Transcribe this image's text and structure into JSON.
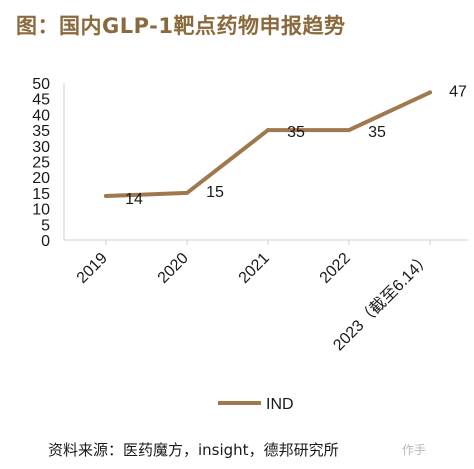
{
  "title": "图：国内GLP-1靶点药物申报趋势",
  "source": "资料来源：医药魔方，insight，德邦研究所",
  "watermark": "作手",
  "colors": {
    "title": "#8a6a3c",
    "series": "#a0784e",
    "axis": "#d0d0d0",
    "text": "#1a1a1a"
  },
  "chart_data": {
    "type": "line",
    "title": "",
    "xlabel": "",
    "ylabel": "",
    "categories": [
      "2019",
      "2020",
      "2021",
      "2022",
      "2023（截至6.14）"
    ],
    "series": [
      {
        "name": "IND",
        "values": [
          14,
          15,
          35,
          35,
          47
        ]
      }
    ],
    "data_labels": [
      "14",
      "15",
      "35",
      "35",
      "47"
    ],
    "y_ticks": [
      "0",
      "5",
      "10",
      "15",
      "20",
      "25",
      "30",
      "35",
      "40",
      "45",
      "50"
    ],
    "ylim": [
      0,
      50
    ],
    "grid": false,
    "legend_position": "bottom"
  }
}
